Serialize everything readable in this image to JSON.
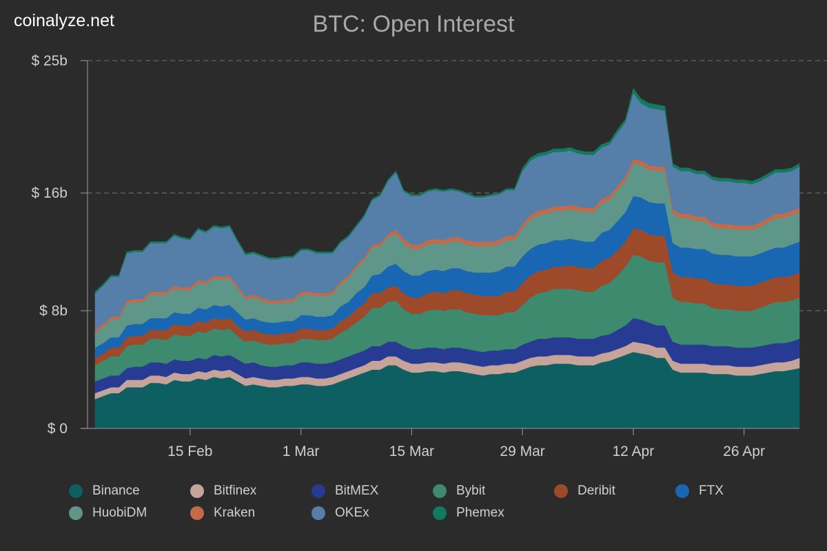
{
  "watermark": "coinalyze.net",
  "chart_data": {
    "type": "area",
    "stacked": true,
    "title": "BTC: Open Interest",
    "xlabel": "",
    "ylabel": "",
    "ylim": [
      0,
      25
    ],
    "y_ticks": [
      {
        "value": 0,
        "label": "$ 0"
      },
      {
        "value": 8,
        "label": "$ 8b"
      },
      {
        "value": 16,
        "label": "$ 16b"
      },
      {
        "value": 25,
        "label": "$ 25b"
      }
    ],
    "grid": "horizontal-dashed",
    "legend": "bottom",
    "x": [
      "Feb 3",
      "Feb 4",
      "Feb 5",
      "Feb 6",
      "Feb 7",
      "Feb 8",
      "Feb 9",
      "Feb 10",
      "Feb 11",
      "Feb 12",
      "Feb 13",
      "Feb 14",
      "Feb 15",
      "Feb 16",
      "Feb 17",
      "Feb 18",
      "Feb 19",
      "Feb 20",
      "Feb 21",
      "Feb 22",
      "Feb 23",
      "Feb 24",
      "Feb 25",
      "Feb 26",
      "Feb 27",
      "Feb 28",
      "Mar 1",
      "Mar 2",
      "Mar 3",
      "Mar 4",
      "Mar 5",
      "Mar 6",
      "Mar 7",
      "Mar 8",
      "Mar 9",
      "Mar 10",
      "Mar 11",
      "Mar 12",
      "Mar 13",
      "Mar 14",
      "Mar 15",
      "Mar 16",
      "Mar 17",
      "Mar 18",
      "Mar 19",
      "Mar 20",
      "Mar 21",
      "Mar 22",
      "Mar 23",
      "Mar 24",
      "Mar 25",
      "Mar 26",
      "Mar 27",
      "Mar 28",
      "Mar 29",
      "Mar 30",
      "Mar 31",
      "Apr 1",
      "Apr 2",
      "Apr 3",
      "Apr 4",
      "Apr 5",
      "Apr 6",
      "Apr 7",
      "Apr 8",
      "Apr 9",
      "Apr 10",
      "Apr 11",
      "Apr 12",
      "Apr 13",
      "Apr 14",
      "Apr 15",
      "Apr 16",
      "Apr 17",
      "Apr 18",
      "Apr 19",
      "Apr 20",
      "Apr 21",
      "Apr 22",
      "Apr 23",
      "Apr 24",
      "Apr 25",
      "Apr 26",
      "Apr 27",
      "Apr 28",
      "Apr 29",
      "Apr 30",
      "May 1",
      "May 2",
      "May 3"
    ],
    "x_ticks": [
      {
        "index": 12,
        "label": "15 Feb"
      },
      {
        "index": 26,
        "label": "1 Mar"
      },
      {
        "index": 40,
        "label": "15 Mar"
      },
      {
        "index": 54,
        "label": "29 Mar"
      },
      {
        "index": 68,
        "label": "12 Apr"
      },
      {
        "index": 82,
        "label": "26 Apr"
      }
    ],
    "series": [
      {
        "name": "Binance",
        "color": "#0e5f62",
        "values": [
          2,
          2.2,
          2.4,
          2.4,
          2.8,
          2.8,
          2.8,
          3.1,
          3.1,
          3,
          3.3,
          3.2,
          3.2,
          3.4,
          3.3,
          3.5,
          3.4,
          3.5,
          3.2,
          2.9,
          3,
          2.9,
          2.8,
          2.8,
          2.9,
          2.9,
          3,
          3,
          2.9,
          2.9,
          3,
          3.2,
          3.4,
          3.6,
          3.8,
          4,
          4,
          4.3,
          4.3,
          4,
          3.8,
          3.8,
          3.9,
          3.9,
          3.8,
          3.9,
          3.9,
          3.8,
          3.7,
          3.6,
          3.7,
          3.7,
          3.8,
          3.8,
          4,
          4.2,
          4.3,
          4.3,
          4.4,
          4.4,
          4.4,
          4.3,
          4.3,
          4.3,
          4.5,
          4.6,
          4.8,
          5,
          5.2,
          5.1,
          5,
          4.8,
          4.8,
          4,
          3.8,
          3.8,
          3.8,
          3.8,
          3.7,
          3.7,
          3.7,
          3.6,
          3.6,
          3.6,
          3.7,
          3.8,
          3.9,
          3.9,
          4,
          4.1
        ]
      },
      {
        "name": "Bitfinex",
        "color": "#c7a49a",
        "values": [
          0.4,
          0.4,
          0.4,
          0.4,
          0.5,
          0.5,
          0.5,
          0.5,
          0.5,
          0.5,
          0.5,
          0.5,
          0.5,
          0.5,
          0.5,
          0.5,
          0.5,
          0.5,
          0.5,
          0.5,
          0.5,
          0.5,
          0.5,
          0.5,
          0.5,
          0.5,
          0.5,
          0.5,
          0.5,
          0.5,
          0.5,
          0.5,
          0.5,
          0.5,
          0.5,
          0.6,
          0.6,
          0.6,
          0.6,
          0.6,
          0.6,
          0.6,
          0.6,
          0.6,
          0.6,
          0.6,
          0.6,
          0.6,
          0.6,
          0.6,
          0.6,
          0.6,
          0.6,
          0.6,
          0.6,
          0.6,
          0.6,
          0.6,
          0.6,
          0.6,
          0.6,
          0.6,
          0.6,
          0.6,
          0.6,
          0.6,
          0.6,
          0.6,
          0.7,
          0.7,
          0.7,
          0.7,
          0.7,
          0.6,
          0.6,
          0.6,
          0.6,
          0.6,
          0.6,
          0.6,
          0.6,
          0.6,
          0.6,
          0.6,
          0.6,
          0.6,
          0.6,
          0.6,
          0.6,
          0.7
        ]
      },
      {
        "name": "BitMEX",
        "color": "#283b93",
        "values": [
          0.8,
          0.8,
          0.8,
          0.8,
          0.8,
          0.9,
          0.9,
          0.9,
          0.9,
          0.9,
          0.9,
          0.9,
          0.9,
          0.9,
          0.9,
          1,
          1,
          1,
          1,
          1,
          1,
          0.9,
          0.9,
          0.9,
          0.9,
          0.9,
          1,
          1,
          1,
          1,
          1,
          1,
          1,
          1,
          1,
          1,
          1,
          1,
          1,
          1,
          1,
          1,
          1,
          1,
          1,
          1,
          1,
          1,
          1,
          1,
          1,
          1,
          1,
          1,
          1.1,
          1.1,
          1.2,
          1.2,
          1.2,
          1.2,
          1.2,
          1.2,
          1.2,
          1.2,
          1.2,
          1.2,
          1.3,
          1.4,
          1.6,
          1.6,
          1.5,
          1.5,
          1.5,
          1.3,
          1.3,
          1.3,
          1.3,
          1.3,
          1.3,
          1.3,
          1.3,
          1.3,
          1.3,
          1.3,
          1.3,
          1.3,
          1.3,
          1.3,
          1.3,
          1.3
        ]
      },
      {
        "name": "Bybit",
        "color": "#3d8a6f",
        "values": [
          1.1,
          1.2,
          1.3,
          1.3,
          1.5,
          1.5,
          1.5,
          1.6,
          1.6,
          1.6,
          1.7,
          1.7,
          1.7,
          1.8,
          1.8,
          1.8,
          1.8,
          1.8,
          1.6,
          1.5,
          1.5,
          1.5,
          1.5,
          1.5,
          1.5,
          1.5,
          1.6,
          1.6,
          1.6,
          1.6,
          1.6,
          1.8,
          1.9,
          2.1,
          2.3,
          2.6,
          2.6,
          2.7,
          2.8,
          2.5,
          2.4,
          2.4,
          2.5,
          2.6,
          2.6,
          2.6,
          2.6,
          2.5,
          2.5,
          2.5,
          2.4,
          2.4,
          2.5,
          2.5,
          2.7,
          3,
          3.1,
          3.2,
          3.3,
          3.3,
          3.3,
          3.3,
          3.2,
          3.2,
          3.4,
          3.5,
          3.7,
          4,
          4.3,
          4.3,
          4.2,
          4.3,
          4.3,
          3,
          2.9,
          2.9,
          2.8,
          2.8,
          2.6,
          2.5,
          2.5,
          2.5,
          2.5,
          2.5,
          2.6,
          2.7,
          2.8,
          2.8,
          2.8,
          2.8
        ]
      },
      {
        "name": "Deribit",
        "color": "#9c4a2a",
        "values": [
          0.5,
          0.5,
          0.6,
          0.6,
          0.6,
          0.6,
          0.6,
          0.6,
          0.6,
          0.7,
          0.7,
          0.7,
          0.7,
          0.7,
          0.7,
          0.7,
          0.7,
          0.7,
          0.7,
          0.7,
          0.7,
          0.7,
          0.7,
          0.7,
          0.7,
          0.7,
          0.7,
          0.7,
          0.7,
          0.7,
          0.7,
          0.8,
          0.8,
          0.9,
          0.9,
          1,
          1,
          1,
          1,
          1.1,
          1.1,
          1.1,
          1.2,
          1.2,
          1.2,
          1.3,
          1.3,
          1.3,
          1.3,
          1.3,
          1.3,
          1.3,
          1.4,
          1.4,
          1.5,
          1.5,
          1.5,
          1.5,
          1.5,
          1.5,
          1.6,
          1.6,
          1.6,
          1.6,
          1.7,
          1.7,
          1.7,
          1.7,
          1.8,
          1.8,
          1.8,
          1.8,
          1.8,
          1.7,
          1.7,
          1.7,
          1.7,
          1.7,
          1.7,
          1.7,
          1.7,
          1.7,
          1.7,
          1.7,
          1.7,
          1.7,
          1.7,
          1.7,
          1.7,
          1.7
        ]
      },
      {
        "name": "FTX",
        "color": "#1966b3",
        "values": [
          0.7,
          0.7,
          0.7,
          0.7,
          0.8,
          0.8,
          0.8,
          0.8,
          0.8,
          0.8,
          0.8,
          0.8,
          0.8,
          0.9,
          0.9,
          0.9,
          0.9,
          0.9,
          0.9,
          0.8,
          0.8,
          0.8,
          0.8,
          0.8,
          0.8,
          0.8,
          0.9,
          0.9,
          0.9,
          0.9,
          0.9,
          1,
          1,
          1.1,
          1.1,
          1.2,
          1.3,
          1.4,
          1.5,
          1.5,
          1.5,
          1.5,
          1.5,
          1.5,
          1.5,
          1.5,
          1.5,
          1.5,
          1.5,
          1.6,
          1.6,
          1.7,
          1.7,
          1.7,
          1.8,
          1.8,
          1.8,
          1.8,
          1.8,
          1.8,
          1.8,
          1.8,
          1.8,
          1.8,
          1.9,
          1.9,
          2,
          2,
          2.2,
          2.2,
          2.2,
          2.2,
          2.2,
          2,
          2,
          2,
          2,
          2,
          2,
          2,
          2,
          2,
          2,
          2,
          2,
          2,
          2,
          2,
          2.1,
          2.1
        ]
      },
      {
        "name": "HuobiDM",
        "color": "#5e978a",
        "values": [
          1,
          1.1,
          1.2,
          1.2,
          1.5,
          1.5,
          1.5,
          1.6,
          1.6,
          1.6,
          1.6,
          1.6,
          1.6,
          1.7,
          1.7,
          1.8,
          1.8,
          1.8,
          1.6,
          1.4,
          1.4,
          1.4,
          1.3,
          1.3,
          1.3,
          1.3,
          1.4,
          1.4,
          1.4,
          1.4,
          1.4,
          1.5,
          1.6,
          1.7,
          1.8,
          1.9,
          1.9,
          2,
          2,
          1.9,
          1.8,
          1.8,
          1.8,
          1.8,
          1.8,
          1.8,
          1.8,
          1.8,
          1.8,
          1.8,
          1.8,
          1.8,
          1.8,
          1.8,
          1.9,
          2,
          2,
          2,
          2,
          2,
          2,
          2,
          2,
          2,
          2,
          2,
          2.1,
          2.1,
          2.2,
          2.2,
          2.2,
          2.2,
          2.2,
          2,
          2,
          2,
          1.9,
          1.9,
          1.8,
          1.8,
          1.8,
          1.8,
          1.8,
          1.8,
          1.8,
          1.9,
          2,
          2,
          2,
          2
        ]
      },
      {
        "name": "Kraken",
        "color": "#c26a4a",
        "values": [
          0.2,
          0.2,
          0.2,
          0.2,
          0.2,
          0.2,
          0.2,
          0.2,
          0.2,
          0.2,
          0.2,
          0.2,
          0.2,
          0.2,
          0.2,
          0.2,
          0.2,
          0.2,
          0.2,
          0.2,
          0.2,
          0.2,
          0.2,
          0.2,
          0.2,
          0.2,
          0.2,
          0.2,
          0.2,
          0.2,
          0.2,
          0.2,
          0.2,
          0.2,
          0.2,
          0.2,
          0.2,
          0.2,
          0.3,
          0.3,
          0.3,
          0.3,
          0.3,
          0.3,
          0.3,
          0.3,
          0.3,
          0.3,
          0.3,
          0.3,
          0.3,
          0.3,
          0.3,
          0.3,
          0.3,
          0.3,
          0.3,
          0.3,
          0.3,
          0.3,
          0.3,
          0.3,
          0.3,
          0.3,
          0.3,
          0.3,
          0.3,
          0.3,
          0.3,
          0.3,
          0.3,
          0.3,
          0.3,
          0.3,
          0.3,
          0.3,
          0.3,
          0.3,
          0.3,
          0.3,
          0.3,
          0.3,
          0.3,
          0.3,
          0.3,
          0.3,
          0.3,
          0.3,
          0.3,
          0.3
        ]
      },
      {
        "name": "OKEx",
        "color": "#557fa8",
        "values": [
          2.5,
          2.6,
          2.7,
          2.7,
          3.2,
          3.2,
          3.2,
          3.3,
          3.3,
          3.3,
          3.4,
          3.3,
          3.2,
          3.4,
          3.3,
          3.3,
          3.3,
          3.3,
          3,
          2.8,
          2.8,
          2.8,
          2.8,
          2.8,
          2.8,
          2.8,
          2.8,
          2.8,
          2.7,
          2.7,
          2.6,
          2.6,
          2.6,
          2.6,
          2.8,
          3,
          3.2,
          3.6,
          3.9,
          3.2,
          3.3,
          3.3,
          3.3,
          3.3,
          3.3,
          3.2,
          3.1,
          3.1,
          3,
          3,
          3.1,
          3.1,
          3.1,
          3.1,
          3.6,
          3.7,
          3.7,
          3.7,
          3.7,
          3.7,
          3.7,
          3.6,
          3.6,
          3.6,
          3.5,
          3.5,
          3.6,
          3.7,
          4.5,
          3.9,
          3.9,
          3.9,
          3.8,
          2.9,
          2.9,
          2.9,
          2.9,
          2.9,
          2.9,
          2.9,
          2.9,
          2.9,
          2.9,
          2.8,
          2.8,
          2.8,
          2.8,
          2.8,
          2.7,
          2.8
        ]
      },
      {
        "name": "Phemex",
        "color": "#137a5f",
        "values": [
          0.1,
          0.1,
          0.1,
          0.1,
          0.1,
          0.1,
          0.1,
          0.1,
          0.1,
          0.1,
          0.1,
          0.1,
          0.1,
          0.1,
          0.1,
          0.1,
          0.1,
          0.1,
          0.1,
          0.1,
          0.1,
          0.1,
          0.1,
          0.1,
          0.1,
          0.1,
          0.1,
          0.1,
          0.1,
          0.1,
          0.1,
          0.1,
          0.1,
          0.1,
          0.1,
          0.1,
          0.1,
          0.1,
          0.1,
          0.1,
          0.1,
          0.1,
          0.1,
          0.1,
          0.1,
          0.1,
          0.1,
          0.1,
          0.1,
          0.1,
          0.1,
          0.1,
          0.1,
          0.1,
          0.2,
          0.2,
          0.2,
          0.2,
          0.2,
          0.2,
          0.2,
          0.2,
          0.2,
          0.2,
          0.2,
          0.2,
          0.2,
          0.2,
          0.3,
          0.3,
          0.3,
          0.3,
          0.3,
          0.2,
          0.2,
          0.2,
          0.2,
          0.2,
          0.2,
          0.2,
          0.2,
          0.2,
          0.2,
          0.2,
          0.2,
          0.2,
          0.2,
          0.2,
          0.2,
          0.2
        ]
      }
    ]
  }
}
